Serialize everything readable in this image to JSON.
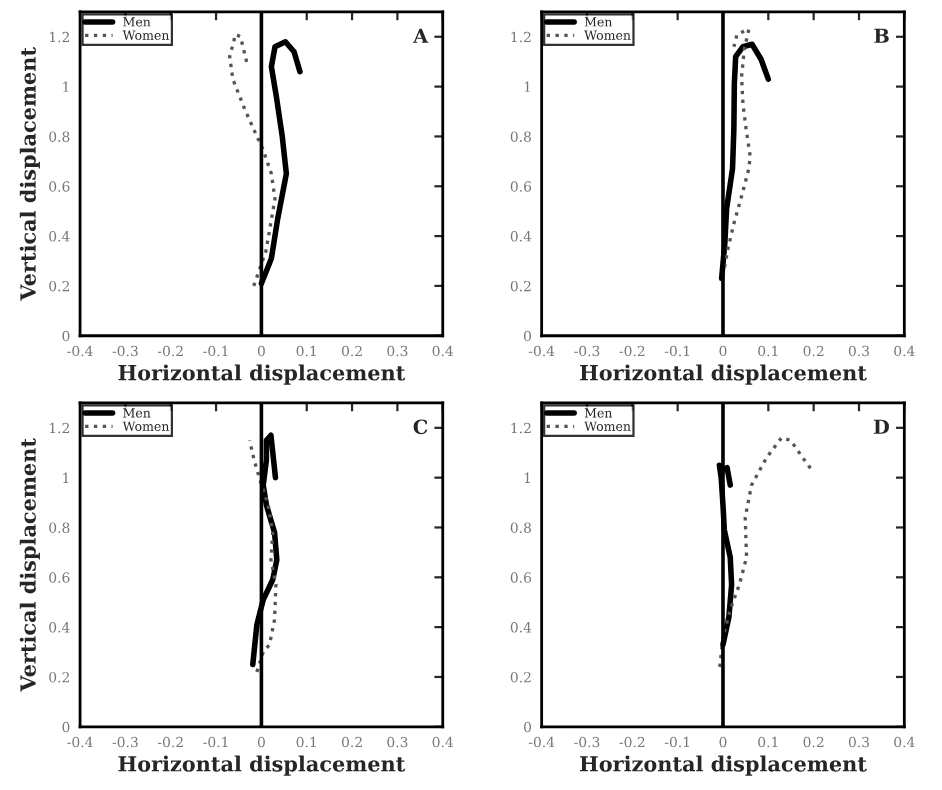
{
  "chart_data": [
    {
      "type": "line",
      "xlabel": "Horizontal displacement",
      "ylabel": "Vertical displacement",
      "annotations": [
        "A"
      ],
      "xlim": [
        -0.4,
        0.4
      ],
      "xticks": [
        -0.4,
        -0.3,
        -0.2,
        -0.1,
        0,
        0.1,
        0.2,
        0.3,
        0.4
      ],
      "ylim": [
        0,
        1.3
      ],
      "yticks": [
        0,
        0.2,
        0.4,
        0.6,
        0.8,
        1,
        1.2
      ],
      "grid": false,
      "legend": "top left",
      "ref_lines": [
        {
          "axis": "x",
          "value": 0,
          "color": "#000000"
        }
      ],
      "series": [
        {
          "name": "Men",
          "color": "#000000",
          "line_style": "solid",
          "x": [
            0.0,
            0.022,
            0.036,
            0.055,
            0.046,
            0.033,
            0.022,
            0.03,
            0.053,
            0.072,
            0.085
          ],
          "values": [
            0.21,
            0.31,
            0.47,
            0.65,
            0.8,
            0.96,
            1.08,
            1.16,
            1.18,
            1.14,
            1.06
          ]
        },
        {
          "name": "Women",
          "color": "#555555",
          "line_style": "dotted",
          "x": [
            -0.017,
            0.01,
            0.03,
            0.022,
            0.003,
            -0.01,
            -0.037,
            -0.063,
            -0.07,
            -0.057,
            -0.046,
            -0.03
          ],
          "values": [
            0.2,
            0.34,
            0.55,
            0.65,
            0.75,
            0.8,
            0.91,
            1.03,
            1.12,
            1.21,
            1.2,
            1.08
          ]
        }
      ]
    },
    {
      "type": "line",
      "xlabel": "Horizontal displacement",
      "annotations": [
        "B"
      ],
      "xlim": [
        -0.4,
        0.4
      ],
      "xticks": [
        -0.4,
        -0.3,
        -0.2,
        -0.1,
        0,
        0.1,
        0.2,
        0.3,
        0.4
      ],
      "ylim": [
        0,
        1.3
      ],
      "yticks": [
        0,
        0.2,
        0.4,
        0.6,
        0.8,
        1,
        1.2
      ],
      "grid": false,
      "legend": "top left",
      "ref_lines": [
        {
          "axis": "x",
          "value": 0,
          "color": "#000000"
        }
      ],
      "series": [
        {
          "name": "Men",
          "color": "#000000",
          "line_style": "solid",
          "x": [
            -0.003,
            0.004,
            0.008,
            0.021,
            0.024,
            0.025,
            0.028,
            0.044,
            0.064,
            0.084,
            0.1
          ],
          "values": [
            0.23,
            0.37,
            0.51,
            0.67,
            0.83,
            1.01,
            1.12,
            1.16,
            1.17,
            1.11,
            1.03
          ]
        },
        {
          "name": "Women",
          "color": "#555555",
          "line_style": "dotted",
          "x": [
            0.0,
            0.011,
            0.024,
            0.041,
            0.057,
            0.06,
            0.051,
            0.044,
            0.041,
            0.047,
            0.057,
            0.031,
            0.024
          ],
          "values": [
            0.24,
            0.35,
            0.45,
            0.56,
            0.67,
            0.72,
            0.83,
            0.93,
            1.04,
            1.15,
            1.23,
            1.21,
            1.16
          ]
        }
      ]
    },
    {
      "type": "line",
      "xlabel": "Horizontal displacement",
      "ylabel": "Vertical displacement",
      "annotations": [
        "C"
      ],
      "xlim": [
        -0.4,
        0.4
      ],
      "xticks": [
        -0.4,
        -0.3,
        -0.2,
        -0.1,
        0,
        0.1,
        0.2,
        0.3,
        0.4
      ],
      "ylim": [
        0,
        1.3
      ],
      "yticks": [
        0,
        0.2,
        0.4,
        0.6,
        0.8,
        1,
        1.2
      ],
      "grid": false,
      "legend": "top left",
      "ref_lines": [
        {
          "axis": "x",
          "value": 0,
          "color": "#000000"
        }
      ],
      "series": [
        {
          "name": "Men",
          "color": "#000000",
          "line_style": "solid",
          "x": [
            -0.019,
            -0.01,
            0.004,
            0.025,
            0.034,
            0.029,
            0.011,
            0.004,
            0.011,
            0.011,
            0.021,
            0.031
          ],
          "values": [
            0.25,
            0.41,
            0.51,
            0.59,
            0.67,
            0.78,
            0.89,
            0.97,
            1.07,
            1.15,
            1.17,
            1.0
          ]
        },
        {
          "name": "Women",
          "color": "#555555",
          "line_style": "dotted",
          "x": [
            -0.01,
            0.004,
            0.018,
            0.029,
            0.032,
            0.021,
            0.025,
            0.015,
            -0.003,
            -0.016,
            -0.026
          ],
          "values": [
            0.22,
            0.3,
            0.33,
            0.43,
            0.57,
            0.67,
            0.78,
            0.89,
            0.99,
            1.07,
            1.15
          ]
        }
      ]
    },
    {
      "type": "line",
      "xlabel": "Horizontal displacement",
      "annotations": [
        "D"
      ],
      "xlim": [
        -0.4,
        0.4
      ],
      "xticks": [
        -0.4,
        -0.3,
        -0.2,
        -0.1,
        0,
        0.1,
        0.2,
        0.3,
        0.4
      ],
      "ylim": [
        0,
        1.3
      ],
      "yticks": [
        0,
        0.2,
        0.4,
        0.6,
        0.8,
        1,
        1.2
      ],
      "grid": false,
      "legend": "top left",
      "ref_lines": [
        {
          "axis": "x",
          "value": 0,
          "color": "#000000"
        }
      ],
      "series": [
        {
          "name": "Men",
          "color": "#000000",
          "line_style": "solid",
          "x": [
            0.0,
            0.013,
            0.019,
            0.016,
            0.003,
            0.0,
            -0.004,
            -0.008,
            0.0,
            0.009,
            0.016
          ],
          "values": [
            0.33,
            0.44,
            0.57,
            0.68,
            0.79,
            0.89,
            1.0,
            1.05,
            1.03,
            1.04,
            0.97
          ]
        },
        {
          "name": "Women",
          "color": "#555555",
          "line_style": "dotted",
          "x": [
            -0.007,
            0.0,
            0.016,
            0.036,
            0.052,
            0.049,
            0.063,
            0.096,
            0.129,
            0.149,
            0.176,
            0.196
          ],
          "values": [
            0.24,
            0.36,
            0.47,
            0.57,
            0.68,
            0.84,
            0.97,
            1.08,
            1.16,
            1.15,
            1.08,
            1.03
          ]
        }
      ]
    }
  ]
}
